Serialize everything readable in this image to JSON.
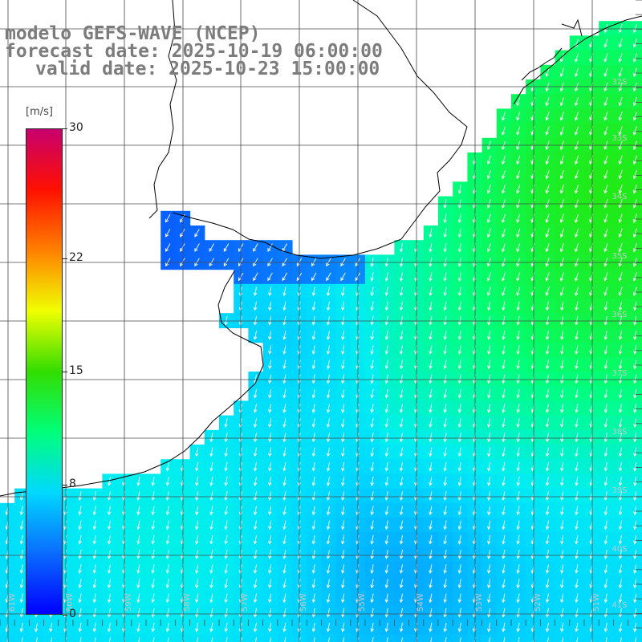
{
  "header": {
    "model": "modelo GEFS-WAVE (NCEP)",
    "forecast": "forecast date: 2025-10-19 06:00:00",
    "valid": "valid date: 2025-10-23 15:00:00"
  },
  "colorbar": {
    "unit": "[m/s]",
    "ticks": [
      {
        "label": "30",
        "value": 30
      },
      {
        "label": "22",
        "value": 22
      },
      {
        "label": "15",
        "value": 15
      },
      {
        "label": "8",
        "value": 8
      },
      {
        "label": "0",
        "value": 0
      }
    ],
    "colors": [
      "#0000ff",
      "#0a6cff",
      "#00d8ff",
      "#00ff7a",
      "#33dd00",
      "#f0ff00",
      "#ff8000",
      "#ff1000",
      "#c8006e"
    ]
  },
  "lat_labels": [
    "32S",
    "33S",
    "34S",
    "35S",
    "36S",
    "37S",
    "38S",
    "39S",
    "40S",
    "41S"
  ],
  "lon_labels": [
    "61W",
    "60W",
    "59W",
    "58W",
    "57W",
    "56W",
    "55W",
    "54W",
    "53W",
    "52W",
    "51W"
  ],
  "colors": {
    "land": "#ffffff",
    "grid": "#4a4a4a",
    "coast": "#000000",
    "arrow": "#ffffff",
    "header_text": "#7c7c7c"
  }
}
